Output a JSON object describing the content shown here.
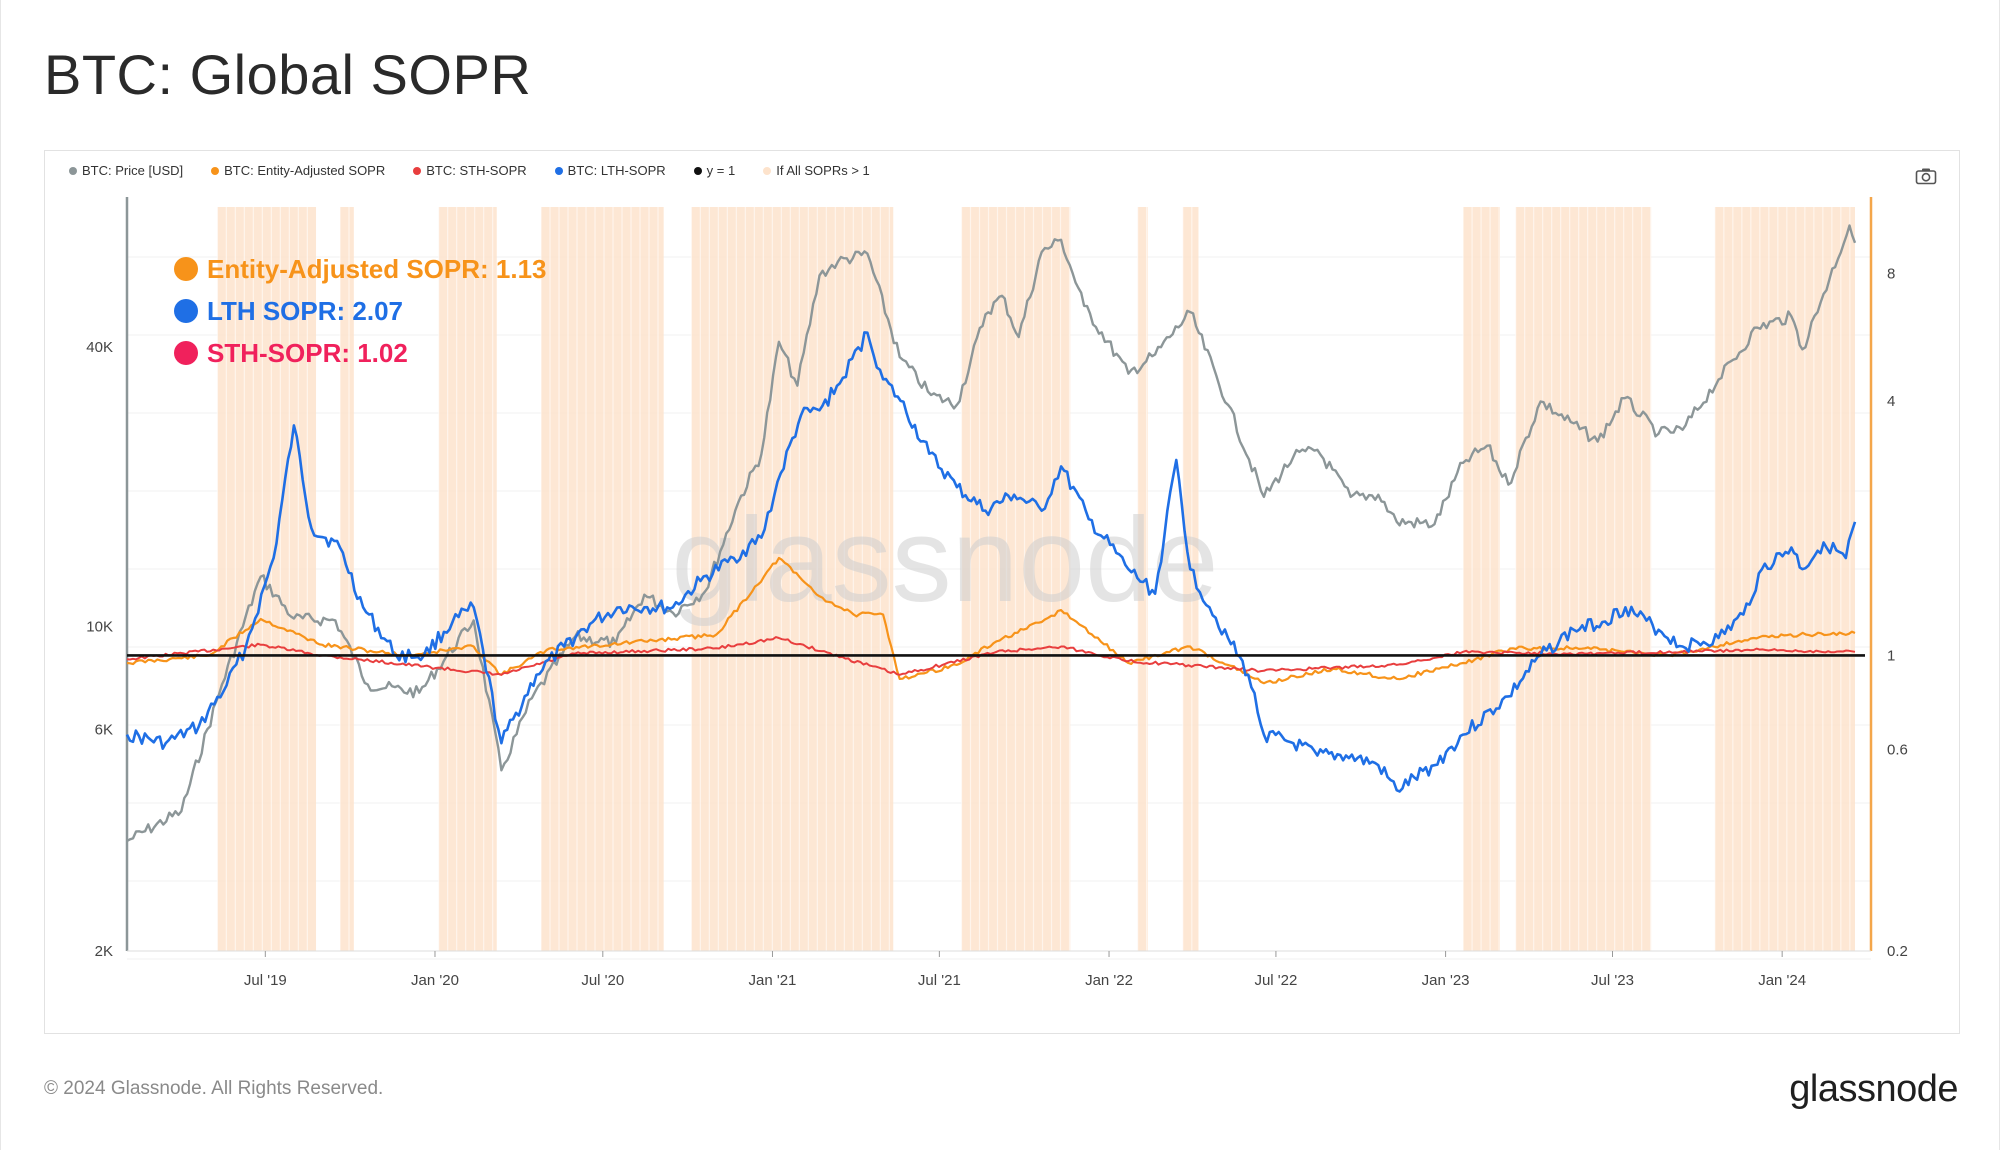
{
  "title": "BTC: Global SOPR",
  "footer": {
    "copyright": "© 2024 Glassnode. All Rights Reserved.",
    "logo": "glassnode"
  },
  "toolbar": {
    "camera_icon": "camera-icon"
  },
  "watermark": "glassnode",
  "colors": {
    "price": "#8c9698",
    "entity_sopr": "#f7931a",
    "sth_sopr": "#e83e3e",
    "lth_sopr": "#1f6fe5",
    "y1": "#111111",
    "shade": "#fde3cc",
    "right_axis": "#f4a64a"
  },
  "legend": [
    {
      "label": "BTC: Price [USD]",
      "color": "#8c9698"
    },
    {
      "label": "BTC: Entity-Adjusted SOPR",
      "color": "#f7931a"
    },
    {
      "label": "BTC: STH-SOPR",
      "color": "#e83e3e"
    },
    {
      "label": "BTC: LTH-SOPR",
      "color": "#1f6fe5"
    },
    {
      "label": "y = 1",
      "color": "#111111"
    },
    {
      "label": "If All SOPRs > 1",
      "color": "#fde3cc"
    }
  ],
  "annotations": [
    {
      "text": "Entity-Adjusted SOPR: 1.13",
      "color": "#f7931a"
    },
    {
      "text": "LTH SOPR: 2.07",
      "color": "#1f6fe5"
    },
    {
      "text": "STH-SOPR: 1.02",
      "color": "#f0215c"
    }
  ],
  "chart_data": {
    "type": "line",
    "title": "BTC: Global SOPR",
    "x_ticks": [
      "Jul '19",
      "Jan '20",
      "Jul '20",
      "Jan '21",
      "Jul '21",
      "Jan '22",
      "Jul '22",
      "Jan '23",
      "Jul '23",
      "Jan '24"
    ],
    "x_tick_dates": [
      "2019-07-01",
      "2020-01-01",
      "2020-07-01",
      "2021-01-01",
      "2021-07-01",
      "2022-01-01",
      "2022-07-01",
      "2023-01-01",
      "2023-07-01",
      "2024-01-01"
    ],
    "x_range": [
      "2019-02-01",
      "2024-03-20"
    ],
    "left_axis": {
      "scale": "log",
      "ticks": [
        2000,
        6000,
        10000,
        40000
      ],
      "tick_labels": [
        "2K",
        "6K",
        "10K",
        "40K"
      ],
      "range": [
        2000,
        80000
      ]
    },
    "right_axis": {
      "scale": "log",
      "ticks": [
        0.2,
        0.6,
        1,
        4,
        8
      ],
      "tick_labels": [
        "0.2",
        "0.6",
        "1",
        "4",
        "8"
      ],
      "range": [
        0.2,
        11.5
      ]
    },
    "grid": true,
    "legend_position": "top-left",
    "series": [
      {
        "name": "BTC: Price [USD]",
        "axis": "left",
        "x": [
          "2019-02-01",
          "2019-04-01",
          "2019-05-15",
          "2019-06-26",
          "2019-08-01",
          "2019-09-15",
          "2019-10-20",
          "2019-12-15",
          "2020-02-12",
          "2020-03-13",
          "2020-04-15",
          "2020-06-01",
          "2020-07-15",
          "2020-08-15",
          "2020-09-15",
          "2020-10-20",
          "2020-11-25",
          "2020-12-20",
          "2021-01-08",
          "2021-01-28",
          "2021-02-21",
          "2021-03-13",
          "2021-04-14",
          "2021-05-19",
          "2021-06-22",
          "2021-07-20",
          "2021-08-20",
          "2021-09-07",
          "2021-09-25",
          "2021-10-20",
          "2021-11-10",
          "2021-12-05",
          "2022-01-22",
          "2022-02-20",
          "2022-03-30",
          "2022-05-10",
          "2022-06-18",
          "2022-07-20",
          "2022-08-15",
          "2022-09-20",
          "2022-10-20",
          "2022-11-09",
          "2022-12-20",
          "2023-01-20",
          "2023-02-15",
          "2023-03-10",
          "2023-04-14",
          "2023-06-15",
          "2023-07-14",
          "2023-08-20",
          "2023-09-15",
          "2023-10-24",
          "2023-12-05",
          "2024-01-11",
          "2024-01-23",
          "2024-02-15",
          "2024-03-14",
          "2024-03-20"
        ],
        "values": [
          3450,
          4000,
          7500,
          12800,
          10400,
          10300,
          7500,
          7200,
          10300,
          4900,
          7000,
          9500,
          9200,
          11700,
          10700,
          11900,
          18500,
          23500,
          41000,
          33000,
          57000,
          61000,
          63500,
          38000,
          31500,
          30000,
          47000,
          51500,
          42000,
          64000,
          68000,
          49000,
          35000,
          38500,
          47500,
          30000,
          19000,
          23200,
          24000,
          19000,
          19200,
          16800,
          16600,
          22500,
          24500,
          20200,
          30500,
          25000,
          31000,
          26000,
          26500,
          34000,
          44000,
          46500,
          39500,
          52000,
          73000,
          67000
        ]
      },
      {
        "name": "BTC: Entity-Adjusted SOPR",
        "axis": "right",
        "x": [
          "2019-02-01",
          "2019-05-01",
          "2019-06-26",
          "2019-09-01",
          "2019-12-01",
          "2020-02-12",
          "2020-03-13",
          "2020-05-01",
          "2020-08-15",
          "2020-11-01",
          "2021-01-08",
          "2021-02-21",
          "2021-03-30",
          "2021-05-01",
          "2021-05-19",
          "2021-07-20",
          "2021-09-01",
          "2021-10-20",
          "2021-11-10",
          "2022-01-22",
          "2022-03-30",
          "2022-05-10",
          "2022-06-18",
          "2022-09-01",
          "2022-11-09",
          "2023-01-20",
          "2023-03-15",
          "2023-06-01",
          "2023-09-01",
          "2023-12-01",
          "2024-01-20",
          "2024-03-20"
        ],
        "values": [
          0.96,
          1.0,
          1.22,
          1.06,
          1.0,
          1.05,
          0.9,
          1.03,
          1.08,
          1.12,
          1.7,
          1.38,
          1.25,
          1.25,
          0.88,
          0.95,
          1.08,
          1.2,
          1.28,
          0.96,
          1.05,
          0.95,
          0.86,
          0.93,
          0.88,
          0.96,
          1.04,
          1.04,
          1.0,
          1.1,
          1.12,
          1.13
        ]
      },
      {
        "name": "BTC: STH-SOPR",
        "axis": "right",
        "x": [
          "2019-02-01",
          "2019-06-26",
          "2019-09-01",
          "2020-03-13",
          "2020-06-01",
          "2020-11-01",
          "2021-01-08",
          "2021-05-19",
          "2021-09-01",
          "2021-11-10",
          "2022-01-22",
          "2022-06-18",
          "2022-11-09",
          "2023-01-20",
          "2023-06-01",
          "2023-12-01",
          "2024-03-20"
        ],
        "values": [
          0.98,
          1.06,
          1.0,
          0.9,
          1.01,
          1.04,
          1.1,
          0.9,
          1.02,
          1.05,
          0.97,
          0.92,
          0.95,
          1.02,
          1.01,
          1.03,
          1.02
        ]
      },
      {
        "name": "BTC: LTH-SOPR",
        "axis": "right",
        "x": [
          "2019-02-01",
          "2019-03-15",
          "2019-04-20",
          "2019-05-20",
          "2019-06-10",
          "2019-07-10",
          "2019-08-01",
          "2019-08-20",
          "2019-09-20",
          "2019-10-15",
          "2019-11-20",
          "2019-12-20",
          "2020-01-20",
          "2020-02-12",
          "2020-03-13",
          "2020-04-20",
          "2020-05-20",
          "2020-06-20",
          "2020-07-20",
          "2020-08-15",
          "2020-09-15",
          "2020-10-15",
          "2020-11-20",
          "2020-12-20",
          "2021-01-10",
          "2021-02-01",
          "2021-02-21",
          "2021-03-15",
          "2021-04-14",
          "2021-05-01",
          "2021-05-20",
          "2021-06-20",
          "2021-07-20",
          "2021-08-20",
          "2021-09-20",
          "2021-10-20",
          "2021-11-10",
          "2021-12-10",
          "2022-01-22",
          "2022-02-20",
          "2022-03-15",
          "2022-03-30",
          "2022-04-20",
          "2022-05-10",
          "2022-06-01",
          "2022-06-18",
          "2022-07-20",
          "2022-08-15",
          "2022-09-15",
          "2022-10-20",
          "2022-11-09",
          "2022-12-20",
          "2023-01-20",
          "2023-03-10",
          "2023-04-14",
          "2023-05-20",
          "2023-06-20",
          "2023-07-15",
          "2023-08-20",
          "2023-09-15",
          "2023-10-24",
          "2023-11-20",
          "2023-12-10",
          "2024-01-11",
          "2024-01-23",
          "2024-02-15",
          "2024-03-10",
          "2024-03-20"
        ],
        "values": [
          0.65,
          0.62,
          0.68,
          0.85,
          1.05,
          1.7,
          3.5,
          2.0,
          1.8,
          1.3,
          1.0,
          1.0,
          1.2,
          1.3,
          0.62,
          0.9,
          1.05,
          1.2,
          1.3,
          1.3,
          1.3,
          1.5,
          1.7,
          1.9,
          2.7,
          3.7,
          3.8,
          4.4,
          5.8,
          4.5,
          4.0,
          3.0,
          2.5,
          2.2,
          2.4,
          2.2,
          2.8,
          2.1,
          1.6,
          1.4,
          2.9,
          1.6,
          1.3,
          1.1,
          0.9,
          0.65,
          0.62,
          0.58,
          0.58,
          0.55,
          0.48,
          0.55,
          0.65,
          0.8,
          1.0,
          1.15,
          1.2,
          1.3,
          1.15,
          1.05,
          1.1,
          1.25,
          1.6,
          1.8,
          1.6,
          1.85,
          1.7,
          2.07
        ]
      },
      {
        "name": "y = 1",
        "axis": "right",
        "x": [
          "2019-02-01",
          "2024-03-20"
        ],
        "values": [
          1,
          1
        ]
      }
    ],
    "shaded_regions": {
      "name": "If All SOPRs > 1",
      "ranges": [
        [
          "2019-05-10",
          "2019-08-25"
        ],
        [
          "2019-09-20",
          "2019-10-05"
        ],
        [
          "2020-01-05",
          "2020-03-08"
        ],
        [
          "2020-04-25",
          "2020-09-05"
        ],
        [
          "2020-10-05",
          "2021-05-12"
        ],
        [
          "2021-07-25",
          "2021-11-20"
        ],
        [
          "2022-02-01",
          "2022-02-12"
        ],
        [
          "2022-03-22",
          "2022-04-08"
        ],
        [
          "2023-01-20",
          "2023-03-01"
        ],
        [
          "2023-03-18",
          "2023-08-12"
        ],
        [
          "2023-10-20",
          "2024-03-20"
        ]
      ]
    },
    "annotations": [
      "Entity-Adjusted SOPR: 1.13",
      "LTH SOPR: 2.07",
      "STH-SOPR: 1.02"
    ]
  }
}
